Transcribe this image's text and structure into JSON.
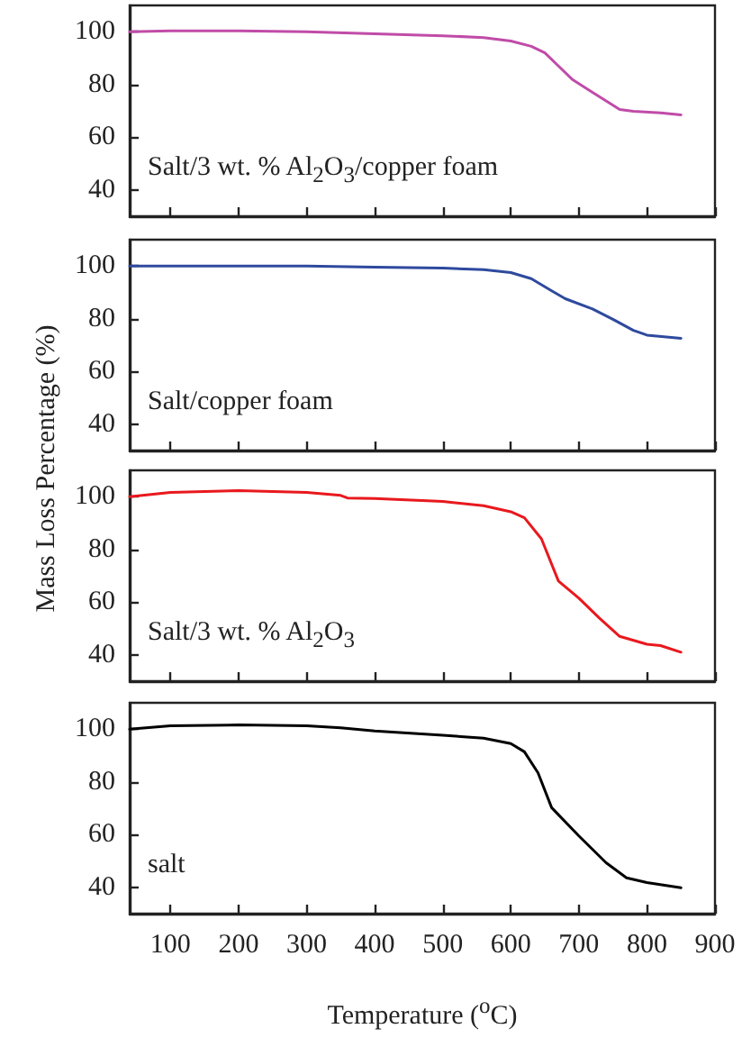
{
  "chart_data": [
    {
      "type": "line",
      "ylabel": "Mass Loss Percentage (%)",
      "annotations": [
        "Salt/3 wt. % Al$_{2}$O$_{3}$/copper foam"
      ],
      "xlim": [
        40,
        900
      ],
      "xticks": [
        100,
        200,
        300,
        400,
        500,
        600,
        700,
        800,
        900
      ],
      "ylim": [
        30,
        110
      ],
      "yticks": [
        40,
        60,
        80,
        100
      ],
      "tick_labels": "y",
      "series": [
        {
          "color": "#c04ca8",
          "x": [
            40,
            100,
            200,
            300,
            400,
            500,
            560,
            600,
            630,
            650,
            670,
            690,
            720,
            760,
            780,
            820,
            850
          ],
          "values": [
            100,
            100.3,
            100.3,
            100,
            99.2,
            98.5,
            97.8,
            96.5,
            94.5,
            92,
            87,
            82,
            77,
            70.5,
            69.8,
            69.2,
            68.5
          ]
        }
      ]
    },
    {
      "type": "line",
      "annotations": [
        "Salt/copper foam"
      ],
      "xlim": [
        40,
        900
      ],
      "xticks": [
        100,
        200,
        300,
        400,
        500,
        600,
        700,
        800,
        900
      ],
      "ylim": [
        30,
        110
      ],
      "yticks": [
        40,
        60,
        80,
        100
      ],
      "tick_labels": "y",
      "series": [
        {
          "color": "#2e4a9e",
          "x": [
            40,
            100,
            200,
            300,
            400,
            500,
            560,
            600,
            630,
            660,
            680,
            720,
            750,
            780,
            800,
            850
          ],
          "values": [
            100,
            100,
            100,
            100,
            99.6,
            99.2,
            98.6,
            97.5,
            95.2,
            90.6,
            87.6,
            83.7,
            79.8,
            75.6,
            73.8,
            72.6
          ]
        }
      ]
    },
    {
      "type": "line",
      "annotations": [
        "Salt/3 wt. % Al$_{2}$O$_{3}$"
      ],
      "xlim": [
        40,
        900
      ],
      "xticks": [
        100,
        200,
        300,
        400,
        500,
        600,
        700,
        800,
        900
      ],
      "ylim": [
        30,
        110
      ],
      "yticks": [
        40,
        60,
        80,
        100
      ],
      "tick_labels": "y",
      "series": [
        {
          "color": "#e8191e",
          "x": [
            40,
            100,
            200,
            300,
            350,
            360,
            400,
            500,
            560,
            600,
            620,
            645,
            670,
            700,
            730,
            760,
            800,
            820,
            850
          ],
          "values": [
            100,
            101.6,
            102.3,
            101.6,
            100.5,
            99.5,
            99.3,
            98.2,
            96.6,
            94.3,
            92,
            84,
            68,
            61.5,
            54,
            47,
            44,
            43.5,
            41
          ]
        }
      ]
    },
    {
      "type": "line",
      "xlabel": "Temperature ($^{o}$C)",
      "annotations": [
        "salt"
      ],
      "xlim": [
        40,
        900
      ],
      "xticks": [
        100,
        200,
        300,
        400,
        500,
        600,
        700,
        800,
        900
      ],
      "ylim": [
        30,
        110
      ],
      "yticks": [
        40,
        60,
        80,
        100
      ],
      "series": [
        {
          "color": "#000000",
          "x": [
            40,
            100,
            200,
            300,
            350,
            400,
            500,
            560,
            600,
            620,
            640,
            660,
            700,
            740,
            770,
            800,
            850
          ],
          "values": [
            100,
            101.3,
            101.6,
            101.3,
            100.5,
            99.3,
            97.7,
            96.6,
            94.5,
            91.4,
            83.4,
            70.2,
            59.5,
            49.3,
            43.6,
            41.8,
            39.8
          ]
        }
      ]
    }
  ]
}
